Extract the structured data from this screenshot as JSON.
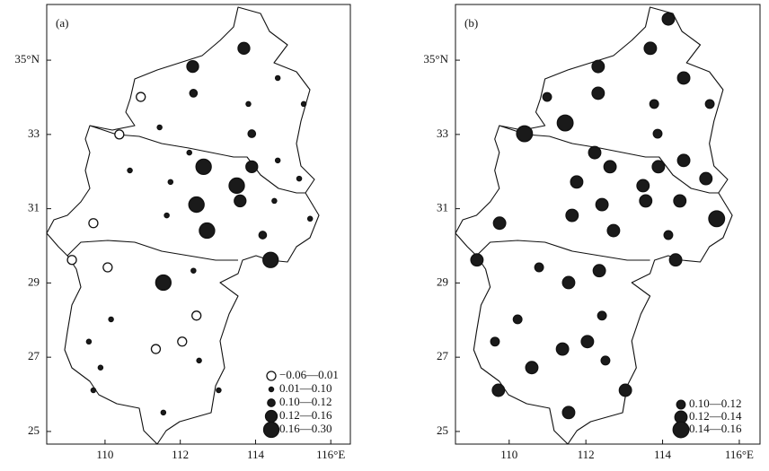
{
  "chart_data": [
    {
      "type": "scatter",
      "panel_label": "(a)",
      "xlim": [
        108.45,
        116.52
      ],
      "ylim": [
        24.66,
        36.5
      ],
      "xticks": [
        110,
        112,
        114,
        {
          "value": 116,
          "label": "116°E"
        }
      ],
      "yticks": [
        25,
        27,
        29,
        31,
        {
          "value": 33,
          "label": "33"
        },
        {
          "value": 35,
          "label": "35°N"
        }
      ],
      "legend": "lower right",
      "series": [
        {
          "name": "−0.06—0.01",
          "color": "#ffffff",
          "x": [
            110.95,
            110.38,
            109.69,
            109.12,
            110.07,
            112.43,
            112.05,
            111.35
          ],
          "values": [
            34.01,
            33.0,
            30.61,
            29.62,
            29.42,
            28.12,
            27.42,
            27.22
          ]
        },
        {
          "name": "0.01—0.10",
          "color": "#1a1a1a",
          "x": [
            111.45,
            113.81,
            114.59,
            112.24,
            111.74,
            111.64,
            110.66,
            110.16,
            109.57,
            109.88,
            109.69,
            111.55,
            113.02,
            112.5,
            112.35,
            114.5,
            115.28,
            115.16,
            115.45,
            114.59
          ],
          "values": [
            33.19,
            33.82,
            34.52,
            32.51,
            31.72,
            30.82,
            32.03,
            28.02,
            27.42,
            26.72,
            26.11,
            25.51,
            26.11,
            26.91,
            29.33,
            31.21,
            33.82,
            31.81,
            30.73,
            32.3
          ]
        },
        {
          "name": "0.10—0.12",
          "color": "#1a1a1a",
          "x": [
            112.35,
            113.9,
            114.19
          ],
          "values": [
            34.11,
            33.02,
            30.29
          ]
        },
        {
          "name": "0.12—0.16",
          "color": "#1a1a1a",
          "x": [
            113.69,
            112.33,
            113.9,
            113.59
          ],
          "values": [
            35.32,
            34.83,
            32.13,
            31.21
          ]
        },
        {
          "name": "0.16—0.30",
          "color": "#1a1a1a",
          "x": [
            112.62,
            113.5,
            112.43,
            112.71,
            111.55,
            114.4
          ],
          "values": [
            32.13,
            31.62,
            31.11,
            30.41,
            29.01,
            29.62
          ]
        }
      ]
    },
    {
      "type": "scatter",
      "panel_label": "(b)",
      "xlim": [
        108.6,
        116.54
      ],
      "ylim": [
        24.66,
        36.5
      ],
      "xticks": [
        110,
        112,
        114,
        {
          "value": 116,
          "label": "116°E"
        }
      ],
      "yticks": [
        25,
        27,
        29,
        31,
        33,
        {
          "value": 35,
          "label": "35°N"
        }
      ],
      "legend": "lower right",
      "series": [
        {
          "name": "0.10—0.12",
          "color": "#1a1a1a",
          "x": [
            110.99,
            113.78,
            115.23,
            113.87,
            114.15,
            110.78,
            110.22,
            109.63,
            112.42,
            112.51
          ],
          "values": [
            34.01,
            33.82,
            33.82,
            33.02,
            30.29,
            29.42,
            28.02,
            27.42,
            28.12,
            26.91
          ]
        },
        {
          "name": "0.12—0.14",
          "color": "#1a1a1a",
          "x": [
            114.15,
            113.68,
            112.32,
            112.32,
            114.55,
            112.23,
            112.63,
            113.89,
            114.55,
            111.76,
            113.49,
            115.13,
            113.56,
            114.45,
            111.64,
            112.42,
            112.72,
            109.75,
            109.16,
            114.34,
            112.35,
            111.55,
            111.39,
            112.04,
            110.59,
            109.72,
            111.55,
            113.03
          ],
          "values": [
            36.11,
            35.32,
            34.83,
            34.11,
            34.52,
            32.51,
            32.13,
            32.13,
            32.3,
            31.72,
            31.62,
            31.81,
            31.21,
            31.21,
            30.82,
            31.11,
            30.41,
            30.61,
            29.62,
            29.62,
            29.33,
            29.01,
            27.22,
            27.42,
            26.72,
            26.11,
            25.51,
            26.11
          ]
        },
        {
          "name": "0.14—0.16",
          "color": "#1a1a1a",
          "x": [
            111.46,
            110.4,
            115.41
          ],
          "values": [
            33.31,
            33.02,
            30.73
          ]
        }
      ]
    }
  ]
}
